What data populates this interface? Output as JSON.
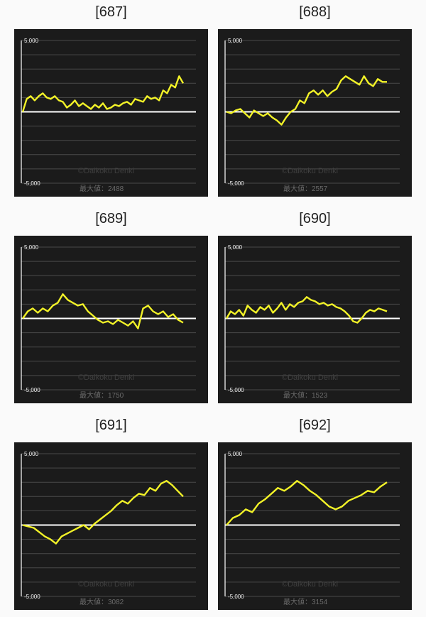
{
  "colors": {
    "background": "#fafafa",
    "panel": "#1b1b1b",
    "series": "#f2f228",
    "zero_line": "#ffffff",
    "grid": "#4a4a4a"
  },
  "watermark": "©Daikoku Denki",
  "chart_data": [
    {
      "id": "687",
      "title": "[687]",
      "type": "line",
      "ylim": [
        -5000,
        5000
      ],
      "yticks": [
        "5,000",
        "-5,000"
      ],
      "grid": true,
      "max_label": "最大値：2488",
      "y": [
        0,
        900,
        1100,
        800,
        1100,
        1300,
        1000,
        900,
        1100,
        800,
        700,
        300,
        500,
        800,
        400,
        600,
        400,
        200,
        500,
        300,
        600,
        200,
        300,
        500,
        400,
        600,
        700,
        500,
        900,
        800,
        700,
        1100,
        900,
        1000,
        800,
        1500,
        1300,
        1900,
        1700,
        2500,
        2000
      ]
    },
    {
      "id": "688",
      "title": "[688]",
      "type": "line",
      "ylim": [
        -5000,
        5000
      ],
      "yticks": [
        "5,000",
        "-5,000"
      ],
      "grid": true,
      "max_label": "最大値：2557",
      "y": [
        0,
        -100,
        100,
        200,
        -100,
        -400,
        100,
        -100,
        -300,
        -100,
        -400,
        -600,
        -900,
        -400,
        0,
        200,
        800,
        600,
        1300,
        1500,
        1200,
        1500,
        1100,
        1400,
        1600,
        2200,
        2500,
        2300,
        2100,
        1900,
        2500,
        2000,
        1800,
        2300,
        2100,
        2100
      ]
    },
    {
      "id": "689",
      "title": "[689]",
      "type": "line",
      "ylim": [
        -5000,
        5000
      ],
      "yticks": [
        "5,000",
        "-5,000"
      ],
      "grid": true,
      "max_label": "最大値：1750",
      "y": [
        0,
        500,
        700,
        400,
        700,
        500,
        900,
        1100,
        1700,
        1300,
        1100,
        900,
        1000,
        500,
        200,
        -100,
        -300,
        -200,
        -400,
        -100,
        -300,
        -500,
        -200,
        -700,
        700,
        900,
        500,
        300,
        500,
        100,
        300,
        -100,
        -300
      ]
    },
    {
      "id": "690",
      "title": "[690]",
      "type": "line",
      "ylim": [
        -5000,
        5000
      ],
      "yticks": [
        "5,000",
        "-5,000"
      ],
      "grid": true,
      "max_label": "最大値：1523",
      "y": [
        0,
        500,
        300,
        600,
        200,
        900,
        600,
        400,
        800,
        600,
        900,
        400,
        700,
        1100,
        600,
        1000,
        800,
        1100,
        1200,
        1500,
        1300,
        1200,
        1000,
        1100,
        900,
        1000,
        800,
        700,
        500,
        200,
        -200,
        -300,
        0,
        400,
        600,
        500,
        700,
        600,
        500
      ]
    },
    {
      "id": "691",
      "title": "[691]",
      "type": "line",
      "ylim": [
        -5000,
        5000
      ],
      "yticks": [
        "5,000",
        "-5,000"
      ],
      "grid": true,
      "max_label": "最大値：3082",
      "y": [
        0,
        -100,
        -200,
        -500,
        -800,
        -1000,
        -1300,
        -800,
        -600,
        -400,
        -200,
        0,
        -300,
        100,
        400,
        700,
        1000,
        1400,
        1700,
        1500,
        1900,
        2200,
        2100,
        2600,
        2400,
        2900,
        3100,
        2800,
        2400,
        2000
      ]
    },
    {
      "id": "692",
      "title": "[692]",
      "type": "line",
      "ylim": [
        -5000,
        5000
      ],
      "yticks": [
        "5,000",
        "-5,000"
      ],
      "grid": true,
      "max_label": "最大値：3154",
      "y": [
        0,
        500,
        700,
        1100,
        900,
        1500,
        1800,
        2200,
        2600,
        2400,
        2700,
        3100,
        2800,
        2400,
        2100,
        1700,
        1300,
        1100,
        1300,
        1700,
        1900,
        2100,
        2400,
        2300,
        2700,
        3000
      ]
    }
  ]
}
